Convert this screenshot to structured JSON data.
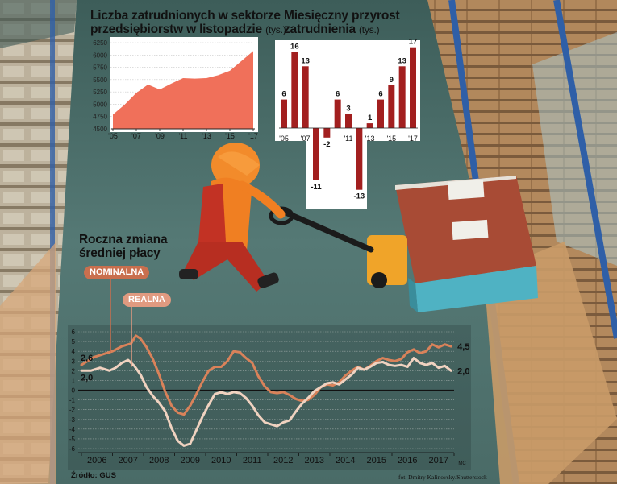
{
  "charts": {
    "employment": {
      "title_line1": "Liczba zatrudnionych w sektorze",
      "title_line2": "przedsiębiorstw w listopadzie",
      "unit": "(tys.)"
    },
    "monthly": {
      "title_line1": "Miesięczny przyrost",
      "title_line2": "zatrudnienia",
      "unit": "(tys.)"
    },
    "wages": {
      "title_line1": "Roczna zmiana",
      "title_line2": "średniej płacy",
      "label_nominal": "NOMINALNA",
      "label_real": "REALNA",
      "x_unit": "MC"
    }
  },
  "source": "Źródło: GUS",
  "photo_credit": "fot. Dmitry Kalinovsky/Shutterstock",
  "colors": {
    "area": "#f0705a",
    "bar": "#a21f1f",
    "nominal": "#d9825a",
    "real": "#f0d2c0",
    "label_nominal": "#c96f4e",
    "label_real": "#e09a80"
  },
  "chart_data": [
    {
      "type": "area",
      "title": "Liczba zatrudnionych w sektorze przedsiębiorstw w listopadzie",
      "ylabel": "(tys.)",
      "x": [
        2005,
        2006,
        2007,
        2008,
        2009,
        2010,
        2011,
        2012,
        2013,
        2014,
        2015,
        2016,
        2017
      ],
      "values": [
        4790,
        4990,
        5230,
        5400,
        5300,
        5420,
        5530,
        5520,
        5530,
        5590,
        5680,
        5880,
        6080
      ],
      "xticks": [
        "'05",
        "'07",
        "'09",
        "'11",
        "'13",
        "'15",
        "'17"
      ],
      "yticks": [
        4500,
        4750,
        5000,
        5250,
        5500,
        5750,
        6000,
        6250
      ],
      "ylim": [
        4500,
        6250
      ]
    },
    {
      "type": "bar",
      "title": "Miesięczny przyrost zatrudnienia",
      "ylabel": "(tys.)",
      "x": [
        2005,
        2006,
        2007,
        2008,
        2009,
        2010,
        2011,
        2012,
        2013,
        2014,
        2015,
        2016,
        2017
      ],
      "values": [
        6,
        16,
        13,
        -11,
        -2,
        6,
        3,
        -13,
        1,
        6,
        9,
        13,
        17
      ],
      "labels": [
        "6",
        "16",
        "13",
        "-11",
        "-2",
        "6",
        "3",
        "-13",
        "1",
        "6",
        "9",
        "13",
        "17"
      ],
      "xticks": [
        "'05",
        "'07",
        "'11",
        "'13",
        "'15",
        "'17"
      ]
    },
    {
      "type": "line",
      "title": "Roczna zmiana średniej płacy",
      "xlabel": "MC",
      "categories": [
        "2006",
        "2007",
        "2008",
        "2009",
        "2010",
        "2011",
        "2012",
        "2013",
        "2014",
        "2015",
        "2016",
        "2017"
      ],
      "yticks": [
        -6,
        -5,
        -4,
        -3,
        -2,
        -1,
        0,
        1,
        2,
        3,
        4,
        5,
        6
      ],
      "ylim": [
        -6,
        6
      ],
      "series": [
        {
          "name": "NOMINALNA",
          "start_label": "2,6",
          "end_label": "4,5",
          "points": [
            [
              2006.0,
              2.6
            ],
            [
              2006.4,
              3.4
            ],
            [
              2006.8,
              3.8
            ],
            [
              2007.0,
              4.0
            ],
            [
              2007.3,
              4.5
            ],
            [
              2007.6,
              4.8
            ],
            [
              2007.75,
              5.6
            ],
            [
              2007.9,
              5.3
            ],
            [
              2008.1,
              4.4
            ],
            [
              2008.3,
              3.2
            ],
            [
              2008.5,
              1.6
            ],
            [
              2008.7,
              -0.2
            ],
            [
              2008.9,
              -1.6
            ],
            [
              2009.1,
              -2.3
            ],
            [
              2009.3,
              -2.5
            ],
            [
              2009.5,
              -1.6
            ],
            [
              2009.7,
              -0.4
            ],
            [
              2009.9,
              0.9
            ],
            [
              2010.1,
              2.0
            ],
            [
              2010.3,
              2.4
            ],
            [
              2010.5,
              2.4
            ],
            [
              2010.7,
              3.0
            ],
            [
              2010.9,
              4.0
            ],
            [
              2011.1,
              3.9
            ],
            [
              2011.3,
              3.3
            ],
            [
              2011.5,
              2.8
            ],
            [
              2011.7,
              1.4
            ],
            [
              2011.9,
              0.4
            ],
            [
              2012.1,
              -0.2
            ],
            [
              2012.3,
              -0.3
            ],
            [
              2012.5,
              -0.2
            ],
            [
              2012.7,
              -0.5
            ],
            [
              2012.9,
              -0.9
            ],
            [
              2013.1,
              -1.1
            ],
            [
              2013.3,
              -1.0
            ],
            [
              2013.5,
              -0.5
            ],
            [
              2013.7,
              0.3
            ],
            [
              2013.9,
              0.6
            ],
            [
              2014.1,
              0.5
            ],
            [
              2014.3,
              0.8
            ],
            [
              2014.5,
              1.5
            ],
            [
              2014.7,
              2.0
            ],
            [
              2014.9,
              2.4
            ],
            [
              2015.1,
              2.1
            ],
            [
              2015.3,
              2.5
            ],
            [
              2015.5,
              3.0
            ],
            [
              2015.7,
              3.3
            ],
            [
              2015.9,
              3.1
            ],
            [
              2016.1,
              3.0
            ],
            [
              2016.3,
              3.2
            ],
            [
              2016.5,
              3.9
            ],
            [
              2016.7,
              4.2
            ],
            [
              2016.9,
              3.8
            ],
            [
              2017.1,
              4.0
            ],
            [
              2017.3,
              4.7
            ],
            [
              2017.5,
              4.4
            ],
            [
              2017.7,
              4.7
            ],
            [
              2017.9,
              4.5
            ]
          ]
        },
        {
          "name": "REALNA",
          "start_label": "2,0",
          "end_label": "2,0",
          "points": [
            [
              2006.0,
              2.0
            ],
            [
              2006.3,
              2.0
            ],
            [
              2006.6,
              2.3
            ],
            [
              2006.9,
              2.0
            ],
            [
              2007.1,
              2.3
            ],
            [
              2007.3,
              2.8
            ],
            [
              2007.5,
              3.1
            ],
            [
              2007.7,
              2.5
            ],
            [
              2007.9,
              1.6
            ],
            [
              2008.1,
              0.3
            ],
            [
              2008.3,
              -0.6
            ],
            [
              2008.5,
              -1.3
            ],
            [
              2008.7,
              -2.2
            ],
            [
              2008.9,
              -3.9
            ],
            [
              2009.1,
              -5.2
            ],
            [
              2009.3,
              -5.7
            ],
            [
              2009.5,
              -5.5
            ],
            [
              2009.7,
              -4.1
            ],
            [
              2009.9,
              -2.7
            ],
            [
              2010.1,
              -1.5
            ],
            [
              2010.3,
              -0.4
            ],
            [
              2010.5,
              -0.2
            ],
            [
              2010.7,
              -0.4
            ],
            [
              2010.9,
              -0.2
            ],
            [
              2011.1,
              -0.3
            ],
            [
              2011.3,
              -0.8
            ],
            [
              2011.5,
              -1.6
            ],
            [
              2011.7,
              -2.6
            ],
            [
              2011.9,
              -3.3
            ],
            [
              2012.1,
              -3.5
            ],
            [
              2012.3,
              -3.7
            ],
            [
              2012.5,
              -3.3
            ],
            [
              2012.7,
              -3.1
            ],
            [
              2012.9,
              -2.2
            ],
            [
              2013.1,
              -1.4
            ],
            [
              2013.3,
              -0.8
            ],
            [
              2013.5,
              -0.1
            ],
            [
              2013.7,
              0.3
            ],
            [
              2013.9,
              0.7
            ],
            [
              2014.1,
              0.8
            ],
            [
              2014.3,
              0.6
            ],
            [
              2014.5,
              1.1
            ],
            [
              2014.7,
              1.6
            ],
            [
              2014.9,
              2.3
            ],
            [
              2015.1,
              2.1
            ],
            [
              2015.3,
              2.4
            ],
            [
              2015.5,
              2.8
            ],
            [
              2015.7,
              2.9
            ],
            [
              2015.9,
              2.6
            ],
            [
              2016.1,
              2.5
            ],
            [
              2016.3,
              2.6
            ],
            [
              2016.5,
              2.4
            ],
            [
              2016.7,
              3.3
            ],
            [
              2016.9,
              2.8
            ],
            [
              2017.1,
              2.6
            ],
            [
              2017.3,
              2.8
            ],
            [
              2017.5,
              2.3
            ],
            [
              2017.7,
              2.5
            ],
            [
              2017.9,
              2.0
            ]
          ]
        }
      ]
    }
  ]
}
